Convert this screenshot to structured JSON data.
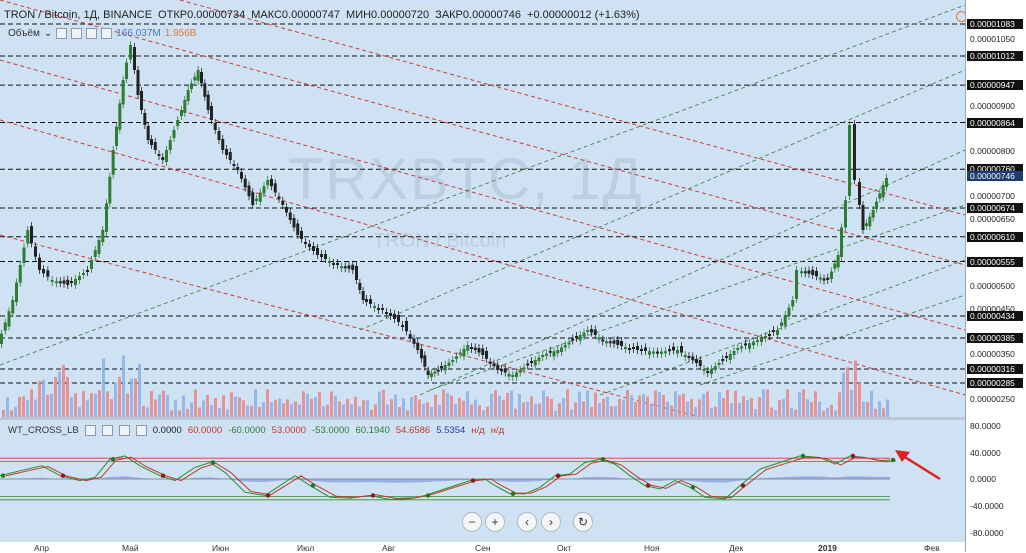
{
  "legend": {
    "symbol": "TRON / Bitcoin, 1Д, BINANCE",
    "open": "ОТКР0.00000734",
    "high": "МАКС0.00000747",
    "low": "МИН0.00000720",
    "close": "ЗАКР0.00000746",
    "change": "+0.00000012 (+1.63%)"
  },
  "volume": {
    "label": "Объём",
    "value1": "166.037M",
    "value2": "1.956B"
  },
  "indicator": {
    "name": "WT_CROSS_LB",
    "params": [
      "0.0000",
      "60.0000",
      "-60.0000",
      "53.0000",
      "-53.0000",
      "60.1940",
      "54.6586",
      "5.5354",
      "н/д",
      "н/д"
    ]
  },
  "watermark": {
    "ticker": "TRXBTC, 1Д",
    "name": "TRON / Bitcoin"
  },
  "price_axis": [
    {
      "v": "0.00001083",
      "hl": true
    },
    {
      "v": "0.00001050",
      "hl": false
    },
    {
      "v": "0.00001012",
      "hl": true
    },
    {
      "v": "0.00000947",
      "hl": true
    },
    {
      "v": "0.00000900",
      "hl": false
    },
    {
      "v": "0.00000864",
      "hl": true
    },
    {
      "v": "0.00000800",
      "hl": false
    },
    {
      "v": "0.00000760",
      "hl": true
    },
    {
      "v": "0.00000746",
      "hl": false,
      "cur": true
    },
    {
      "v": "0.00000700",
      "hl": false
    },
    {
      "v": "0.00000674",
      "hl": true
    },
    {
      "v": "0.00000650",
      "hl": false
    },
    {
      "v": "0.00000610",
      "hl": true
    },
    {
      "v": "0.00000555",
      "hl": true
    },
    {
      "v": "0.00000500",
      "hl": false
    },
    {
      "v": "0.00000450",
      "hl": false
    },
    {
      "v": "0.00000434",
      "hl": true
    },
    {
      "v": "0.00000385",
      "hl": true
    },
    {
      "v": "0.00000350",
      "hl": false
    },
    {
      "v": "0.00000316",
      "hl": true
    },
    {
      "v": "0.00000285",
      "hl": true
    },
    {
      "v": "0.00000250",
      "hl": false
    }
  ],
  "ind_axis": [
    "80.0000",
    "40.0000",
    "0.0000",
    "-40.0000",
    "-80.0000"
  ],
  "dates": [
    {
      "label": "Апр",
      "bold": false
    },
    {
      "label": "Май",
      "bold": false
    },
    {
      "label": "Июн",
      "bold": false
    },
    {
      "label": "Июл",
      "bold": false
    },
    {
      "label": "Авг",
      "bold": false
    },
    {
      "label": "Сен",
      "bold": false
    },
    {
      "label": "Окт",
      "bold": false
    },
    {
      "label": "Ноя",
      "bold": false
    },
    {
      "label": "Дек",
      "bold": false
    },
    {
      "label": "2019",
      "bold": true
    },
    {
      "label": "Фев",
      "bold": false
    }
  ],
  "nav": {
    "zoom_out": "−",
    "zoom_in": "+",
    "back": "‹",
    "forward": "›",
    "reset": "↻"
  },
  "colors": {
    "up": "#2e7d32",
    "down": "#222222",
    "vol_up": "#8fb4e8",
    "vol_down": "#e8898c",
    "arrow": "#e02020"
  }
}
